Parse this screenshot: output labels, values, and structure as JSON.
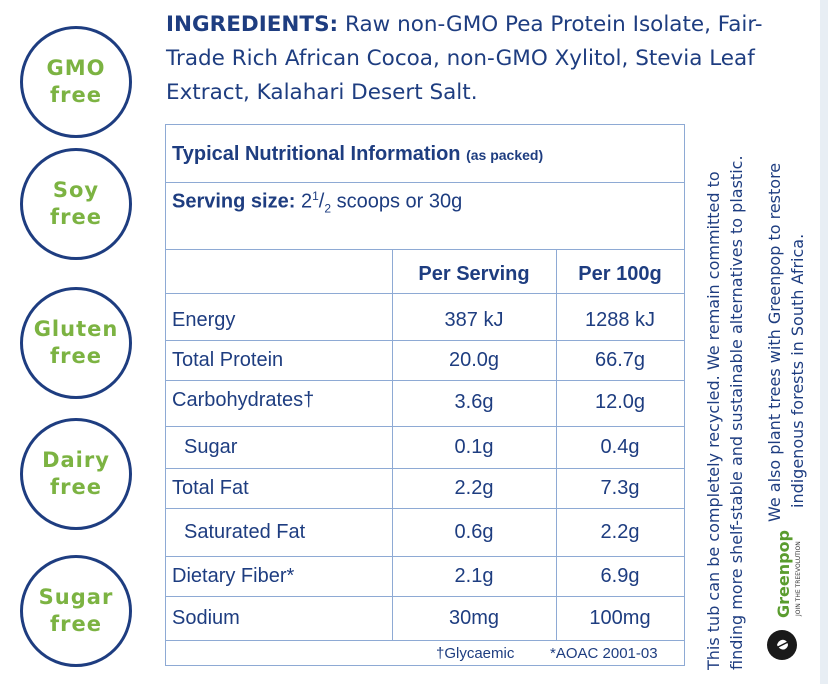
{
  "badges": [
    {
      "line1": "GMO",
      "line2": "free"
    },
    {
      "line1": "Soy",
      "line2": "free"
    },
    {
      "line1": "Gluten",
      "line2": "free"
    },
    {
      "line1": "Dairy",
      "line2": "free"
    },
    {
      "line1": "Sugar",
      "line2": "free"
    }
  ],
  "ingredients": {
    "label": "INGREDIENTS:",
    "text": "Raw non-GMO Pea Protein Isolate, Fair-Trade Rich African Cocoa, non-GMO Xylitol, Stevia Leaf Extract, Kalahari Desert Salt."
  },
  "nutrition": {
    "title": "Typical Nutritional Information",
    "title_note": "(as packed)",
    "serving_label": "Serving size:",
    "serving_whole": "2",
    "serving_num": "1",
    "serving_den": "2",
    "serving_rest": "scoops or 30g",
    "col_per_serving": "Per Serving",
    "col_per_100g": "Per 100g",
    "rows": [
      {
        "name": "Energy",
        "serving": "387 kJ",
        "per100": "1288 kJ"
      },
      {
        "name": "Total Protein",
        "serving": "20.0g",
        "per100": "66.7g"
      },
      {
        "name": "Carbohydrates†",
        "serving": "3.6g",
        "per100": "12.0g"
      },
      {
        "name": "Sugar",
        "serving": "0.1g",
        "per100": "0.4g"
      },
      {
        "name": "Total Fat",
        "serving": "2.2g",
        "per100": "7.3g"
      },
      {
        "name": "Saturated Fat",
        "serving": "0.6g",
        "per100": "2.2g"
      },
      {
        "name": "Dietary Fiber*",
        "serving": "2.1g",
        "per100": "6.9g"
      },
      {
        "name": "Sodium",
        "serving": "30mg",
        "per100": "100mg"
      }
    ],
    "footnote_glycaemic": "†Glycaemic",
    "footnote_aoac": "*AOAC 2001-03"
  },
  "side": {
    "recycle_line1": "This tub can be completely recycled. We remain committed to",
    "recycle_line2": "finding more shelf-stable and sustainable alternatives to plastic.",
    "plant_line1": "We also plant trees with Greenpop to restore",
    "plant_line2": "indigenous forests in South Africa.",
    "logo_name": "Greenpop",
    "logo_tag": "JOIN THE TREEVOLUTION"
  }
}
